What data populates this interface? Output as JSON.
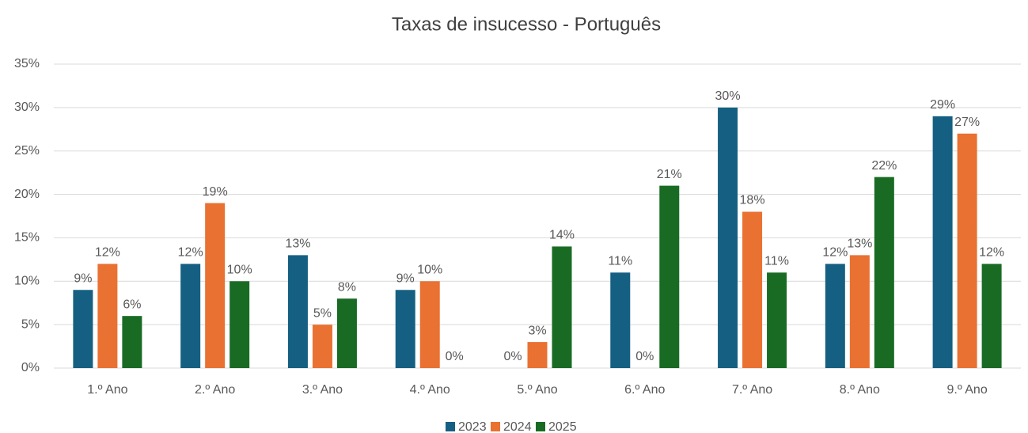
{
  "chart_data": {
    "type": "bar",
    "title": "Taxas de insucesso - Português",
    "categories": [
      "1.º Ano",
      "2.º Ano",
      "3.º Ano",
      "4.º Ano",
      "5.º Ano",
      "6.º Ano",
      "7.º Ano",
      "8.º Ano",
      "9.º Ano"
    ],
    "series": [
      {
        "name": "2023",
        "color": "#156082",
        "values": [
          9,
          12,
          13,
          9,
          0,
          11,
          30,
          12,
          29
        ],
        "value_labels": [
          "9%",
          "12%",
          "13%",
          "9%",
          "0%",
          "11%",
          "30%",
          "12%",
          "29%"
        ]
      },
      {
        "name": "2024",
        "color": "#e97132",
        "values": [
          12,
          19,
          5,
          10,
          3,
          0,
          18,
          13,
          27
        ],
        "value_labels": [
          "12%",
          "19%",
          "5%",
          "10%",
          "3%",
          "0%",
          "18%",
          "13%",
          "27%"
        ]
      },
      {
        "name": "2025",
        "color": "#196b24",
        "values": [
          6,
          10,
          8,
          0,
          14,
          21,
          11,
          22,
          12
        ],
        "value_labels": [
          "6%",
          "10%",
          "8%",
          "0%",
          "14%",
          "21%",
          "11%",
          "22%",
          "12%"
        ]
      }
    ],
    "ylim": [
      0,
      35
    ],
    "yticks": [
      {
        "value": 0,
        "label": "0%"
      },
      {
        "value": 5,
        "label": "5%"
      },
      {
        "value": 10,
        "label": "10%"
      },
      {
        "value": 15,
        "label": "15%"
      },
      {
        "value": 20,
        "label": "20%"
      },
      {
        "value": 25,
        "label": "25%"
      },
      {
        "value": 30,
        "label": "30%"
      },
      {
        "value": 35,
        "label": "35%"
      }
    ],
    "grid": true,
    "legend": "bottom"
  }
}
